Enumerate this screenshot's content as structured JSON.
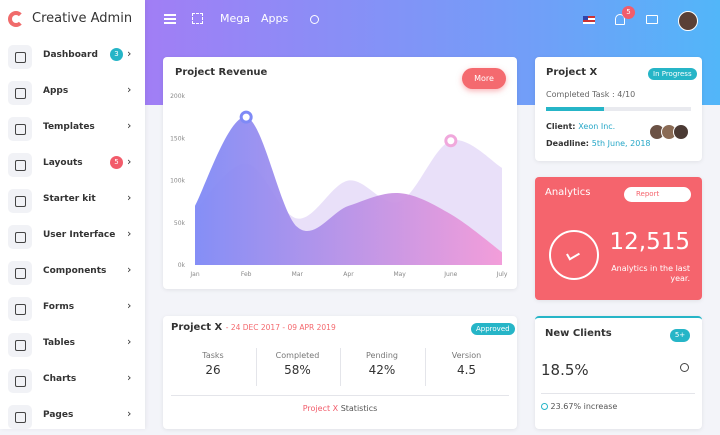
{
  "brand": "Creative Admin",
  "sidebar": [
    {
      "label": "Dashboard",
      "badge": "3"
    },
    {
      "label": "Apps"
    },
    {
      "label": "Templates"
    },
    {
      "label": "Layouts",
      "badge": "5"
    },
    {
      "label": "Starter kit"
    },
    {
      "label": "User Interface"
    },
    {
      "label": "Components"
    },
    {
      "label": "Forms"
    },
    {
      "label": "Tables"
    },
    {
      "label": "Charts"
    },
    {
      "label": "Pages"
    }
  ],
  "header": {
    "menu": [
      "Mega",
      "Apps"
    ],
    "notifications": "5"
  },
  "revenue": {
    "title": "Project Revenue",
    "button": "More",
    "chart_data": {
      "type": "area",
      "categories": [
        "Jan",
        "Feb",
        "Mar",
        "Apr",
        "May",
        "June",
        "July"
      ],
      "series": [
        {
          "color": "#7f8af6",
          "values": [
            70,
            175,
            45,
            70,
            85,
            60,
            15
          ]
        },
        {
          "color": "#e2d6f7",
          "values": [
            65,
            120,
            55,
            100,
            75,
            147,
            115
          ]
        }
      ],
      "ylim": [
        0,
        200000
      ],
      "yticks": [
        {
          "value": 0,
          "label": "0k"
        },
        {
          "value": 50000,
          "label": "50k"
        },
        {
          "value": 100000,
          "label": "100k"
        },
        {
          "value": 150000,
          "label": "150k"
        },
        {
          "value": 200000,
          "label": "200k"
        }
      ],
      "scale": 1000
    }
  },
  "project": {
    "title": "Project X",
    "status": "In Progress",
    "task": "Completed Task : 4/10",
    "client_label": "Client:",
    "client": "Xeon Inc.",
    "deadline_label": "Deadline:",
    "deadline": "5th June, 2018"
  },
  "analytics": {
    "title": "Analytics",
    "button": "Report",
    "value": "12,515",
    "caption": "Analytics in the last year."
  },
  "stats": {
    "title": "Project X",
    "dates": "- 24 DEC 2017 - 09 APR 2019",
    "status": "Approved",
    "columns": [
      {
        "label": "Tasks",
        "value": "26"
      },
      {
        "label": "Completed",
        "value": "58%"
      },
      {
        "label": "Pending",
        "value": "42%"
      },
      {
        "label": "Version",
        "value": "4.5"
      }
    ],
    "footer_link": "Project X",
    "footer_text": "Statistics"
  },
  "clients": {
    "title": "New Clients",
    "badge": "5+",
    "value": "18.5%",
    "change": "23.67% increase"
  }
}
